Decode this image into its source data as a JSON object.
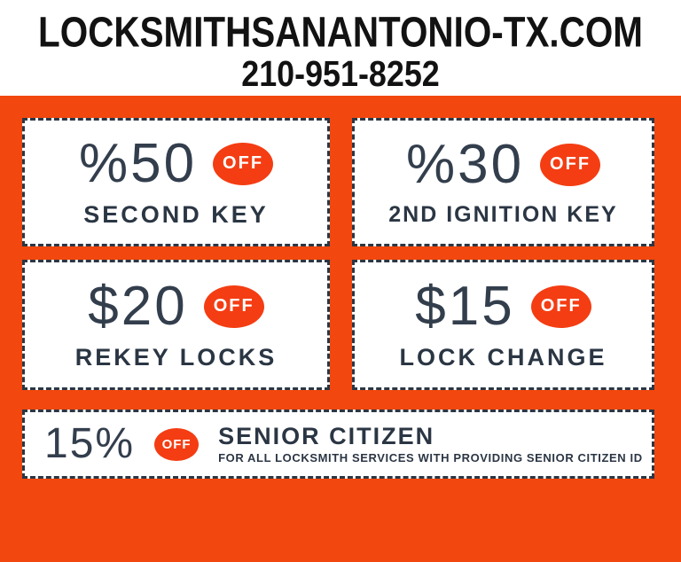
{
  "header": {
    "title": "LOCKSMITHSANANTONIO-TX.COM",
    "phone": "210-951-8252"
  },
  "colors": {
    "background": "#F2470E",
    "badge": "#F43D13",
    "ink": "#2B3644",
    "value_ink": "#333E4D",
    "header_text": "#121212",
    "coupon_bg": "#FFFFFF"
  },
  "coupons": [
    {
      "value": "%50",
      "badge": "OFF",
      "label": "SECOND KEY"
    },
    {
      "value": "%30",
      "badge": "OFF",
      "label": "2ND IGNITION KEY"
    },
    {
      "value": "$20",
      "badge": "OFF",
      "label": "REKEY LOCKS"
    },
    {
      "value": "$15",
      "badge": "OFF",
      "label": "LOCK CHANGE"
    },
    {
      "value": "15%",
      "badge": "OFF",
      "title": "SENIOR CITIZEN",
      "subtitle": "FOR ALL LOCKSMITH SERVICES WITH PROVIDING SENIOR CITIZEN ID"
    }
  ]
}
